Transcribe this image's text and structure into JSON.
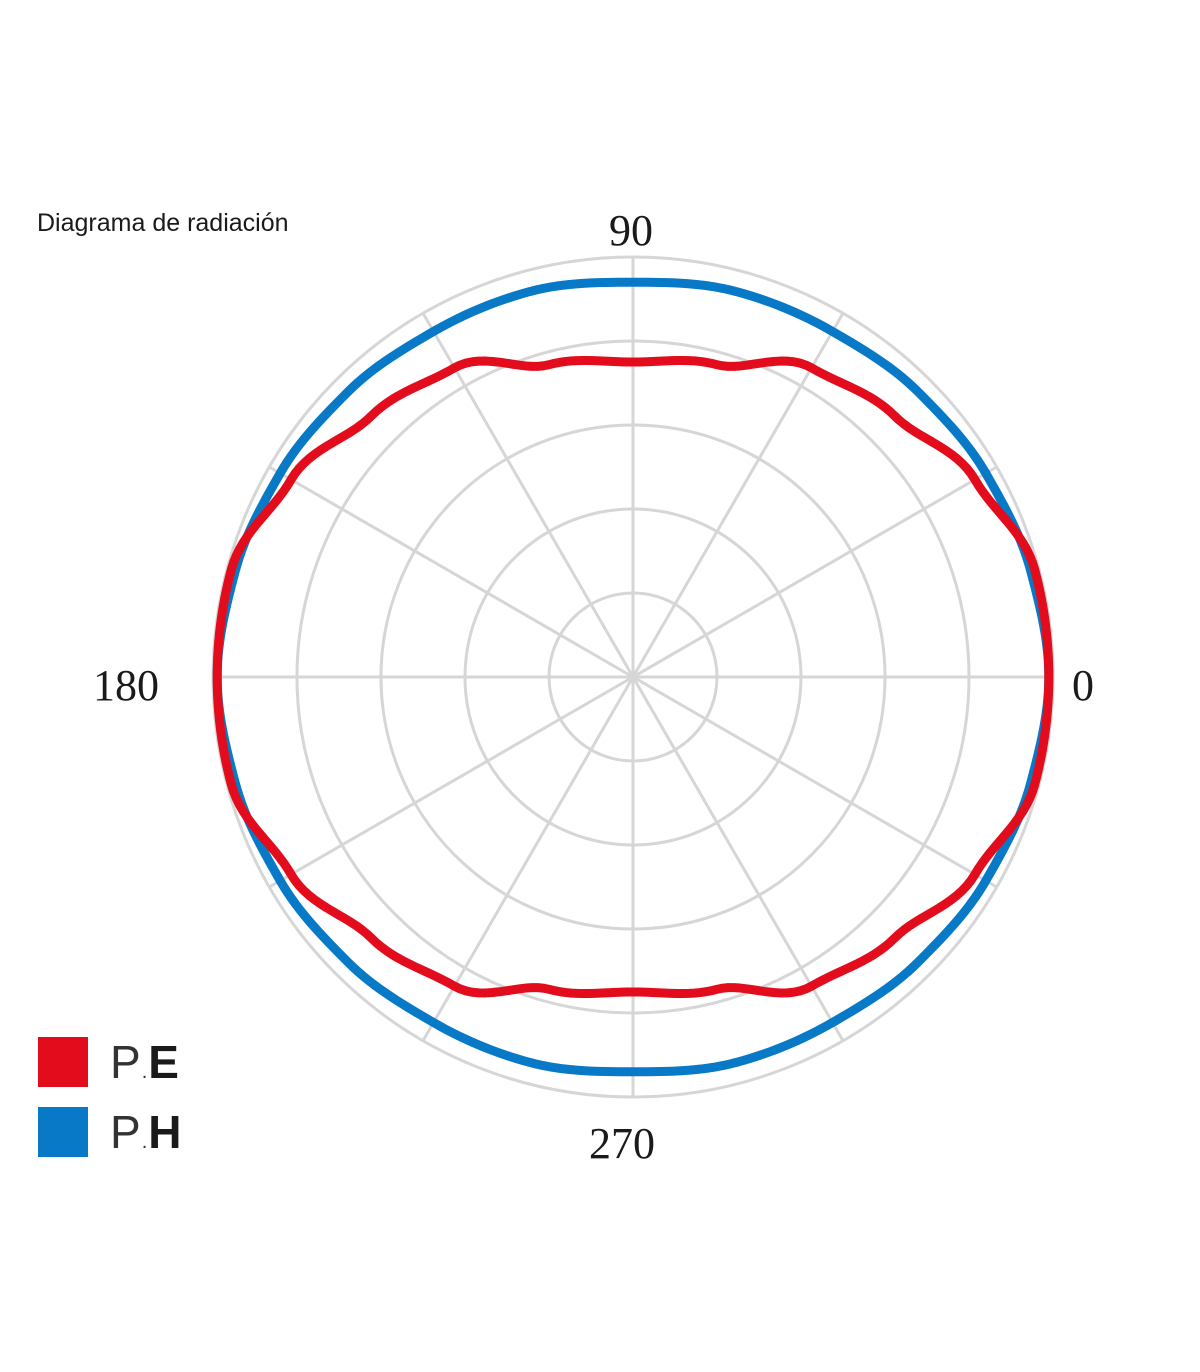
{
  "chart_data": {
    "type": "polar-line",
    "title": "Diagrama de radiación",
    "angular_tick_labels": [
      "0",
      "90",
      "180",
      "270"
    ],
    "angular_gridline_step_deg": 30,
    "radial_rings": 5,
    "rmax": 1.0,
    "grid": true,
    "legend_position": "bottom-left",
    "series": [
      {
        "name": "P.E",
        "prefix": "P",
        "letter": "E",
        "color": "#e30c1d",
        "theta_deg": [
          0,
          15,
          30,
          45,
          60,
          75,
          90,
          105,
          120,
          135,
          150,
          165,
          180,
          195,
          210,
          225,
          240,
          255,
          270,
          285,
          300,
          315,
          330,
          345,
          360
        ],
        "r": [
          0.99,
          0.99,
          0.94,
          0.88,
          0.85,
          0.77,
          0.75,
          0.77,
          0.85,
          0.88,
          0.94,
          0.99,
          0.99,
          0.99,
          0.94,
          0.88,
          0.85,
          0.77,
          0.75,
          0.77,
          0.85,
          0.88,
          0.94,
          0.99,
          0.99
        ]
      },
      {
        "name": "P.H",
        "prefix": "P",
        "letter": "H",
        "color": "#0779c6",
        "theta_deg": [
          0,
          15,
          30,
          45,
          60,
          75,
          90,
          105,
          120,
          135,
          150,
          165,
          180,
          195,
          210,
          225,
          240,
          255,
          270,
          285,
          300,
          315,
          330,
          345,
          360
        ],
        "r": [
          0.99,
          0.98,
          0.97,
          0.96,
          0.95,
          0.95,
          0.94,
          0.95,
          0.95,
          0.96,
          0.97,
          0.98,
          0.99,
          0.98,
          0.97,
          0.96,
          0.95,
          0.95,
          0.94,
          0.95,
          0.95,
          0.96,
          0.97,
          0.98,
          0.99
        ]
      }
    ]
  }
}
